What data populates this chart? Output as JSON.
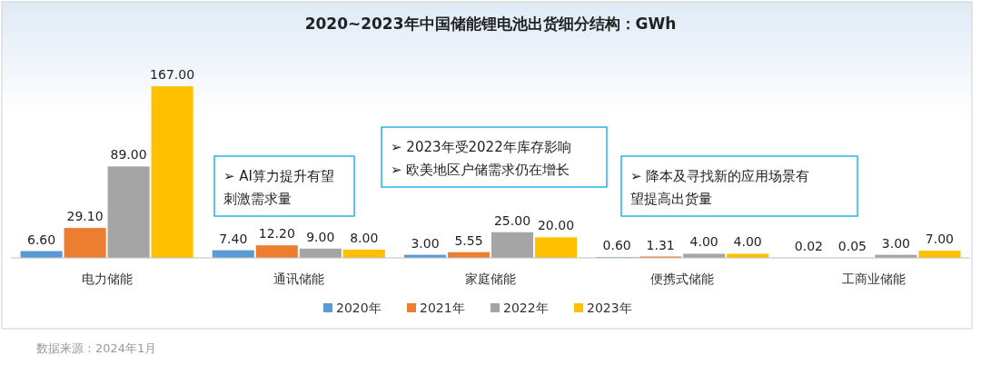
{
  "chart_data": {
    "type": "bar",
    "title": "2020~2023年中国储能锂电池出货细分结构：GWh",
    "categories": [
      "电力储能",
      "通讯储能",
      "家庭储能",
      "便携式储能",
      "工商业储能"
    ],
    "series": [
      {
        "name": "2020年",
        "color": "#5b9bd5",
        "values": [
          6.6,
          7.4,
          3,
          0.6,
          0.02
        ],
        "value_labels": [
          "6.60",
          "7.40",
          "3.00",
          "0.60",
          "0.02"
        ]
      },
      {
        "name": "2021年",
        "color": "#ed7d31",
        "values": [
          29.1,
          12.2,
          5.55,
          1.31,
          0.05
        ],
        "value_labels": [
          "29.10",
          "12.20",
          "5.55",
          "1.31",
          "0.05"
        ]
      },
      {
        "name": "2022年",
        "color": "#a5a5a5",
        "values": [
          89,
          9,
          25,
          4,
          3
        ],
        "value_labels": [
          "89.00",
          "9.00",
          "25.00",
          "4.00",
          "3.00"
        ]
      },
      {
        "name": "2023年",
        "color": "#ffc000",
        "values": [
          167,
          8,
          20,
          4,
          7
        ],
        "value_labels": [
          "167.00",
          "8.00",
          "20.00",
          "4.00",
          "7.00"
        ]
      }
    ],
    "legend": "bottom",
    "grid": false,
    "annotations": [
      "➢ AI算力提升有望刺激需求量",
      "➢ 2023年受2022年库存影响",
      "➢ 欧美地区户储需求仍在增长",
      "➢ 降本及寻找新的应用场景有望提高出货量",
      "数据来源：2024年1月"
    ]
  }
}
